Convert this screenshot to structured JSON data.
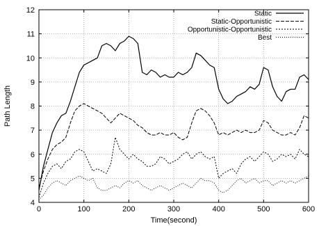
{
  "chart_data": {
    "type": "line",
    "title": "",
    "xlabel": "Time(second)",
    "ylabel": "Path Length",
    "xlim": [
      0,
      600
    ],
    "ylim": [
      4,
      12
    ],
    "xticks": [
      0,
      100,
      200,
      300,
      400,
      500,
      600
    ],
    "yticks": [
      4,
      5,
      6,
      7,
      8,
      9,
      10,
      11,
      12
    ],
    "grid": true,
    "legend_position": "top-right",
    "series": [
      {
        "name": "Static",
        "dash": "",
        "x": [
          0,
          10,
          20,
          30,
          40,
          50,
          60,
          70,
          80,
          90,
          100,
          110,
          120,
          130,
          140,
          150,
          160,
          170,
          180,
          190,
          200,
          210,
          220,
          230,
          240,
          250,
          260,
          270,
          280,
          290,
          300,
          310,
          320,
          330,
          340,
          350,
          360,
          370,
          380,
          390,
          400,
          410,
          420,
          430,
          440,
          450,
          460,
          470,
          480,
          490,
          500,
          510,
          520,
          530,
          540,
          550,
          560,
          570,
          580,
          590,
          600
        ],
        "y": [
          4.5,
          5.5,
          6.2,
          6.9,
          7.3,
          7.6,
          7.7,
          8.2,
          8.8,
          9.4,
          9.7,
          9.8,
          9.9,
          10.0,
          10.5,
          10.6,
          10.5,
          10.3,
          10.6,
          10.7,
          10.9,
          10.8,
          10.6,
          9.4,
          9.3,
          9.5,
          9.4,
          9.2,
          9.3,
          9.2,
          9.2,
          9.4,
          9.3,
          9.4,
          9.6,
          10.2,
          10.1,
          9.9,
          9.7,
          9.6,
          8.7,
          8.3,
          8.1,
          8.2,
          8.4,
          8.5,
          8.6,
          8.8,
          8.7,
          8.9,
          9.6,
          9.5,
          8.8,
          8.4,
          8.2,
          8.6,
          8.7,
          8.7,
          9.2,
          9.3,
          9.1
        ]
      },
      {
        "name": "Static-Opportunistic",
        "dash": "5,2",
        "x": [
          0,
          10,
          20,
          30,
          40,
          50,
          60,
          70,
          80,
          90,
          100,
          110,
          120,
          130,
          140,
          150,
          160,
          170,
          180,
          190,
          200,
          210,
          220,
          230,
          240,
          250,
          260,
          270,
          280,
          290,
          300,
          310,
          320,
          330,
          340,
          350,
          360,
          370,
          380,
          390,
          400,
          410,
          420,
          430,
          440,
          450,
          460,
          470,
          480,
          490,
          500,
          510,
          520,
          530,
          540,
          550,
          560,
          570,
          580,
          590,
          600
        ],
        "y": [
          4.6,
          5.3,
          5.8,
          6.2,
          6.4,
          6.5,
          6.7,
          7.3,
          7.8,
          8.0,
          8.1,
          8.0,
          7.9,
          7.8,
          7.7,
          7.5,
          7.3,
          7.5,
          7.7,
          7.6,
          7.5,
          7.4,
          7.2,
          7.1,
          6.9,
          6.8,
          6.8,
          6.9,
          6.8,
          6.8,
          6.9,
          6.7,
          6.6,
          6.7,
          7.3,
          7.8,
          7.9,
          7.8,
          7.6,
          7.3,
          6.8,
          6.9,
          6.8,
          6.9,
          7.0,
          6.9,
          7.0,
          6.9,
          6.9,
          7.0,
          7.4,
          7.3,
          7.0,
          6.9,
          6.8,
          6.8,
          6.9,
          6.8,
          7.1,
          7.6,
          7.5
        ]
      },
      {
        "name": "Opportunistic-Opportunistic",
        "dash": "2,2",
        "x": [
          0,
          10,
          20,
          30,
          40,
          50,
          60,
          70,
          80,
          90,
          100,
          110,
          120,
          130,
          140,
          150,
          160,
          170,
          180,
          190,
          200,
          210,
          220,
          230,
          240,
          250,
          260,
          270,
          280,
          290,
          300,
          310,
          320,
          330,
          340,
          350,
          360,
          370,
          380,
          390,
          400,
          410,
          420,
          430,
          440,
          450,
          460,
          470,
          480,
          490,
          500,
          510,
          520,
          530,
          540,
          550,
          560,
          570,
          580,
          590,
          600
        ],
        "y": [
          4.2,
          4.8,
          5.2,
          5.5,
          5.6,
          5.4,
          5.7,
          5.8,
          6.1,
          6.2,
          6.1,
          5.7,
          5.3,
          5.4,
          5.3,
          5.2,
          5.6,
          6.7,
          6.2,
          6.0,
          5.8,
          6.0,
          5.8,
          5.7,
          5.5,
          5.5,
          5.6,
          5.9,
          5.8,
          5.6,
          5.7,
          5.8,
          6.0,
          6.1,
          5.8,
          6.0,
          6.1,
          5.9,
          5.8,
          5.9,
          5.0,
          5.2,
          5.3,
          5.4,
          5.2,
          5.6,
          5.8,
          5.9,
          5.7,
          5.9,
          6.1,
          6.0,
          5.7,
          5.8,
          6.0,
          5.9,
          6.0,
          5.8,
          6.2,
          6.0,
          5.9
        ]
      },
      {
        "name": "Best",
        "dash": "1,2",
        "x": [
          0,
          10,
          20,
          30,
          40,
          50,
          60,
          70,
          80,
          90,
          100,
          110,
          120,
          130,
          140,
          150,
          160,
          170,
          180,
          190,
          200,
          210,
          220,
          230,
          240,
          250,
          260,
          270,
          280,
          290,
          300,
          310,
          320,
          330,
          340,
          350,
          360,
          370,
          380,
          390,
          400,
          410,
          420,
          430,
          440,
          450,
          460,
          470,
          480,
          490,
          500,
          510,
          520,
          530,
          540,
          550,
          560,
          570,
          580,
          590,
          600
        ],
        "y": [
          4.1,
          4.3,
          4.6,
          4.8,
          4.9,
          4.8,
          4.7,
          4.9,
          5.0,
          5.1,
          5.0,
          4.9,
          5.0,
          4.6,
          4.5,
          4.5,
          4.6,
          4.7,
          4.6,
          4.8,
          4.9,
          4.8,
          4.9,
          4.7,
          4.6,
          4.5,
          4.6,
          4.7,
          4.6,
          4.5,
          4.6,
          4.7,
          4.8,
          4.7,
          4.6,
          4.8,
          5.0,
          4.9,
          4.9,
          4.8,
          4.5,
          4.4,
          4.5,
          4.7,
          4.9,
          5.0,
          4.8,
          4.9,
          5.0,
          4.8,
          4.9,
          4.9,
          4.7,
          4.8,
          4.9,
          4.8,
          4.9,
          4.8,
          4.9,
          5.0,
          5.1
        ]
      }
    ]
  }
}
